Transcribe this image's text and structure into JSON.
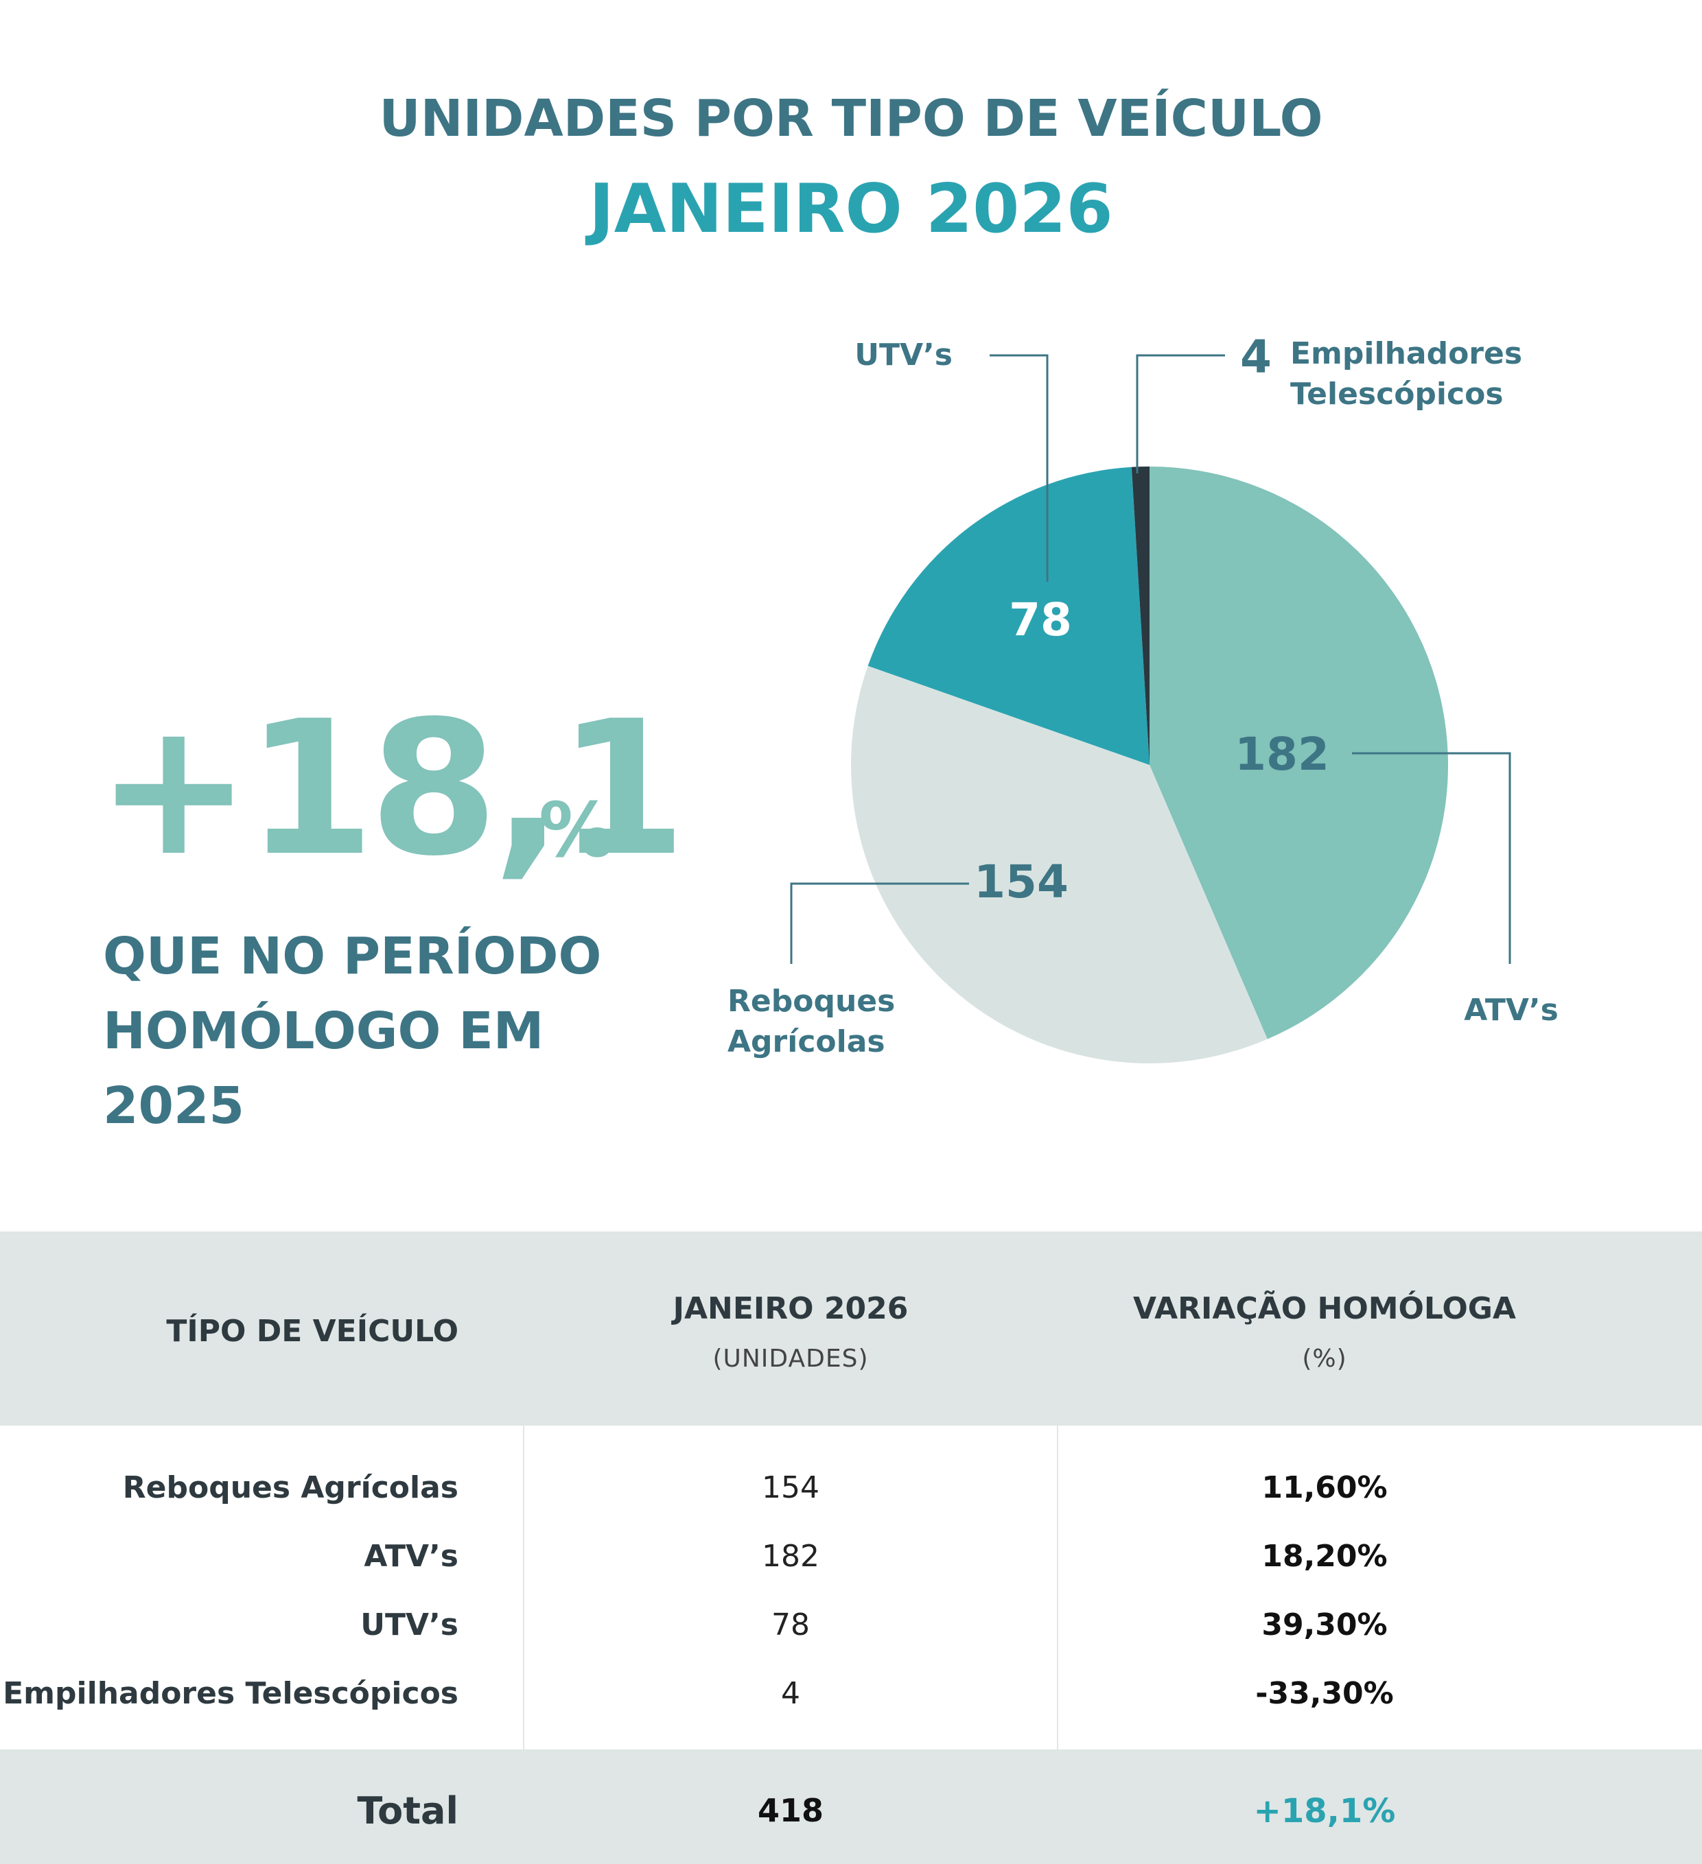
{
  "header": {
    "title": "UNIDADES POR TIPO DE VEÍCULO",
    "subtitle": "JANEIRO 2026"
  },
  "highlight": {
    "value": "+18,1",
    "unit": "%",
    "text_line_1": "QUE NO PERÍODO",
    "text_line_2": "HOMÓLOGO EM",
    "text_line_3": "2025"
  },
  "chart_data": {
    "type": "pie",
    "title": "UNIDADES POR TIPO DE VEÍCULO",
    "subtitle": "JANEIRO 2026",
    "slices": [
      {
        "label": "ATV’s",
        "value": 182,
        "color": "#82c3ba"
      },
      {
        "label": "Reboques Agrícolas",
        "value": 154,
        "color": "#d8e3e1"
      },
      {
        "label": "UTV’s",
        "value": 78,
        "color": "#2aa3b1"
      },
      {
        "label": "Empilhadores Telescópicos",
        "value": 4,
        "color": "#2b3840"
      }
    ],
    "legend": "callout labels"
  },
  "callouts": {
    "atv_label": "ATV’s",
    "reboques_line_1": "Reboques",
    "reboques_line_2": "Agrícolas",
    "utv_label": "UTV’s",
    "empilhadores_value": "4",
    "empilhadores_line_1": "Empilhadores",
    "empilhadores_line_2": "Telescópicos"
  },
  "table": {
    "headers": {
      "type": "TÍPO DE VEÍCULO",
      "units": "JANEIRO 2026",
      "units_sub": "(UNIDADES)",
      "variation": "VARIAÇÃO HOMÓLOGA",
      "variation_sub": "(%)"
    },
    "rows": [
      {
        "name": "Reboques Agrícolas",
        "units": "154",
        "variation": "11,60%"
      },
      {
        "name": "ATV’s",
        "units": "182",
        "variation": "18,20%"
      },
      {
        "name": "UTV’s",
        "units": "78",
        "variation": "39,30%"
      },
      {
        "name": "Empilhadores Telescópicos",
        "units": "4",
        "variation": "-33,30%"
      }
    ],
    "total": {
      "label": "Total",
      "units": "418",
      "variation": "+18,1%"
    }
  }
}
